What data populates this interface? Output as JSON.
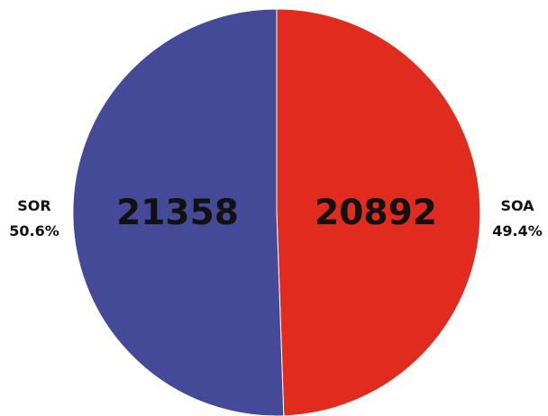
{
  "chart_data": {
    "type": "pie",
    "title": "",
    "slices": [
      {
        "label": "SOA",
        "value": 20892,
        "percent": "49.4%",
        "color": "#E12B1F"
      },
      {
        "label": "SOR",
        "value": 21358,
        "percent": "50.6%",
        "color": "#444A97"
      }
    ],
    "slice_border_color": "#FFFFFF"
  }
}
